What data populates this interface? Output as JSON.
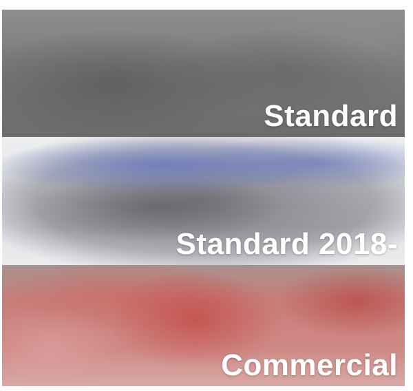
{
  "options": [
    {
      "id": "standard",
      "label": "Standard",
      "color": "#7a7a7a"
    },
    {
      "id": "standard-2018",
      "label": "Standard 2018-",
      "color": "#6878be"
    },
    {
      "id": "commercial",
      "label": "Commercial",
      "color": "#c4524e"
    }
  ]
}
